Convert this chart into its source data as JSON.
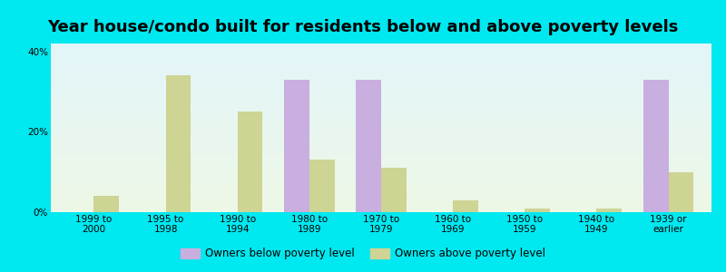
{
  "title": "Year house/condo built for residents below and above poverty levels",
  "categories": [
    "1999 to\n2000",
    "1995 to\n1998",
    "1990 to\n1994",
    "1980 to\n1989",
    "1970 to\n1979",
    "1960 to\n1969",
    "1950 to\n1959",
    "1940 to\n1949",
    "1939 or\nearlier"
  ],
  "below_poverty": [
    0,
    0,
    0,
    33,
    33,
    0,
    0,
    0,
    33
  ],
  "above_poverty": [
    4,
    34,
    25,
    13,
    11,
    3,
    1,
    1,
    10
  ],
  "below_color": "#c9aee0",
  "above_color": "#cdd494",
  "background_color": "#00e8f0",
  "ylim": [
    0,
    42
  ],
  "yticks": [
    0,
    20,
    40
  ],
  "ytick_labels": [
    "0%",
    "20%",
    "40%"
  ],
  "bar_width": 0.35,
  "legend_below_label": "Owners below poverty level",
  "legend_above_label": "Owners above poverty level",
  "title_fontsize": 13,
  "tick_fontsize": 7.5
}
